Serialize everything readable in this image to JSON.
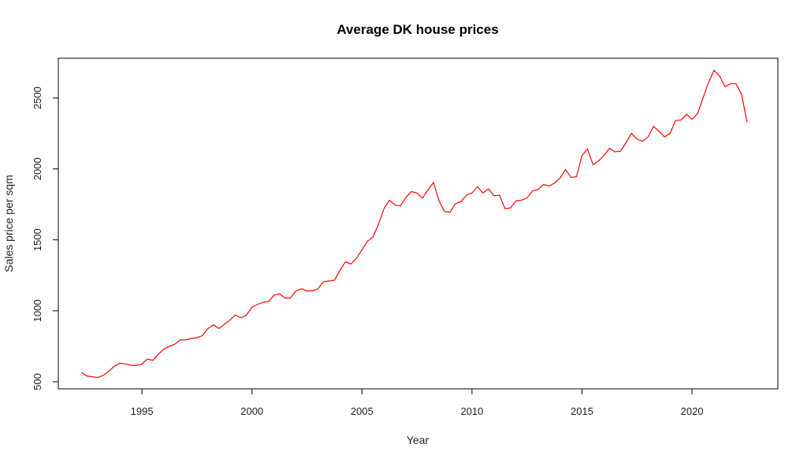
{
  "chart_data": {
    "type": "line",
    "title": "Average DK house prices",
    "xlabel": "Year",
    "ylabel": "Sales price per sqm",
    "xlim": [
      1991.2,
      2023.9
    ],
    "ylim": [
      450,
      2780
    ],
    "x_ticks": [
      1995,
      2000,
      2005,
      2010,
      2015,
      2020
    ],
    "y_ticks": [
      500,
      1000,
      1500,
      2000,
      2500
    ],
    "grid": false,
    "legend": "none",
    "series": [
      {
        "color": "#ff0000",
        "x": [
          1992.25,
          1992.5,
          1992.75,
          1993,
          1993.25,
          1993.5,
          1993.75,
          1994,
          1994.25,
          1994.5,
          1994.75,
          1995,
          1995.25,
          1995.5,
          1995.75,
          1996,
          1996.25,
          1996.5,
          1996.75,
          1997,
          1997.25,
          1997.5,
          1997.75,
          1998,
          1998.25,
          1998.5,
          1998.75,
          1999,
          1999.25,
          1999.5,
          1999.75,
          2000,
          2000.25,
          2000.5,
          2000.75,
          2001,
          2001.25,
          2001.5,
          2001.75,
          2002,
          2002.25,
          2002.5,
          2002.75,
          2003,
          2003.25,
          2003.5,
          2003.75,
          2004,
          2004.25,
          2004.5,
          2004.75,
          2005,
          2005.25,
          2005.5,
          2005.75,
          2006,
          2006.25,
          2006.5,
          2006.75,
          2007,
          2007.25,
          2007.5,
          2007.75,
          2008,
          2008.25,
          2008.5,
          2008.75,
          2009,
          2009.25,
          2009.5,
          2009.75,
          2010,
          2010.25,
          2010.5,
          2010.75,
          2011,
          2011.25,
          2011.5,
          2011.75,
          2012,
          2012.25,
          2012.5,
          2012.75,
          2013,
          2013.25,
          2013.5,
          2013.75,
          2014,
          2014.25,
          2014.5,
          2014.75,
          2015,
          2015.25,
          2015.5,
          2015.75,
          2016,
          2016.25,
          2016.5,
          2016.75,
          2017,
          2017.25,
          2017.5,
          2017.75,
          2018,
          2018.25,
          2018.5,
          2018.75,
          2019,
          2019.25,
          2019.5,
          2019.75,
          2020,
          2020.25,
          2020.5,
          2020.75,
          2021,
          2021.25,
          2021.5,
          2021.75,
          2022,
          2022.25,
          2022.5
        ],
        "values": [
          565,
          540,
          535,
          530,
          545,
          575,
          610,
          630,
          625,
          615,
          615,
          625,
          660,
          650,
          695,
          730,
          750,
          765,
          795,
          795,
          805,
          810,
          825,
          875,
          900,
          875,
          905,
          935,
          970,
          950,
          970,
          1025,
          1045,
          1060,
          1065,
          1110,
          1120,
          1090,
          1090,
          1140,
          1155,
          1140,
          1140,
          1155,
          1205,
          1210,
          1215,
          1285,
          1345,
          1330,
          1370,
          1430,
          1490,
          1520,
          1610,
          1720,
          1780,
          1745,
          1740,
          1800,
          1840,
          1830,
          1795,
          1850,
          1905,
          1775,
          1700,
          1695,
          1755,
          1770,
          1815,
          1830,
          1875,
          1830,
          1860,
          1810,
          1815,
          1720,
          1725,
          1775,
          1780,
          1795,
          1845,
          1855,
          1890,
          1880,
          1900,
          1935,
          1995,
          1940,
          1945,
          2095,
          2140,
          2030,
          2055,
          2095,
          2145,
          2120,
          2125,
          2185,
          2250,
          2210,
          2195,
          2225,
          2300,
          2265,
          2225,
          2250,
          2340,
          2345,
          2385,
          2350,
          2390,
          2500,
          2610,
          2695,
          2655,
          2580,
          2600,
          2600,
          2525,
          2330
        ]
      }
    ]
  }
}
